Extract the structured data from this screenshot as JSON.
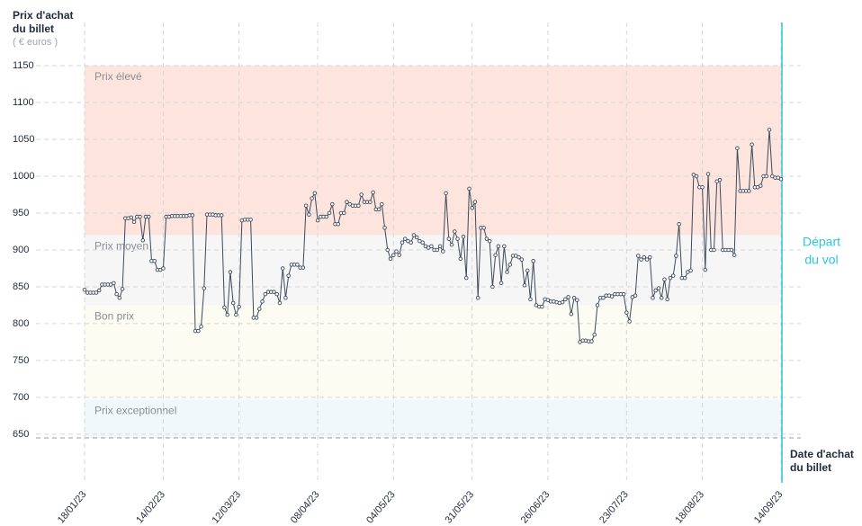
{
  "chart_data": {
    "type": "line",
    "y_label": [
      "Prix d'achat",
      "du billet"
    ],
    "y_unit": "( € euros )",
    "x_label": [
      "Date d'achat",
      "du billet"
    ],
    "annotation": {
      "text": [
        "Départ",
        "du vol"
      ],
      "color": "#2ec4e0"
    },
    "ylim": [
      645,
      1150
    ],
    "yticks": [
      650,
      700,
      750,
      800,
      850,
      900,
      950,
      1000,
      1050,
      1100,
      1150
    ],
    "grid": true,
    "color": "#3d4a5c",
    "bands": [
      {
        "label": "Prix élevé",
        "from": 920,
        "to": 1150,
        "color": "#fde4dd"
      },
      {
        "label": "Prix moyen",
        "from": 825,
        "to": 920,
        "color": "#f6f6f7"
      },
      {
        "label": "Bon prix",
        "from": 697,
        "to": 825,
        "color": "#fcfcf2"
      },
      {
        "label": "Prix exceptionnel",
        "from": 645,
        "to": 697,
        "color": "#f1f8fc"
      }
    ],
    "categories": [
      "18/01/23",
      null,
      null,
      null,
      null,
      null,
      null,
      null,
      null,
      null,
      null,
      null,
      null,
      null,
      null,
      null,
      null,
      null,
      null,
      null,
      null,
      null,
      null,
      null,
      null,
      null,
      null,
      "14/02/23",
      null,
      null,
      null,
      null,
      null,
      null,
      null,
      null,
      null,
      null,
      null,
      null,
      null,
      null,
      null,
      null,
      null,
      null,
      null,
      null,
      null,
      null,
      null,
      null,
      null,
      "12/03/23",
      null,
      null,
      null,
      null,
      null,
      null,
      null,
      null,
      null,
      null,
      null,
      null,
      null,
      null,
      null,
      null,
      null,
      null,
      null,
      null,
      null,
      null,
      null,
      null,
      null,
      null,
      "08/04/23",
      null,
      null,
      null,
      null,
      null,
      null,
      null,
      null,
      null,
      null,
      null,
      null,
      null,
      null,
      null,
      null,
      null,
      null,
      null,
      null,
      null,
      null,
      null,
      null,
      null,
      "04/05/23",
      null,
      null,
      null,
      null,
      null,
      null,
      null,
      null,
      null,
      null,
      null,
      null,
      null,
      null,
      null,
      null,
      null,
      null,
      null,
      null,
      null,
      null,
      null,
      null,
      null,
      null,
      "31/05/23",
      null,
      null,
      null,
      null,
      null,
      null,
      null,
      null,
      null,
      null,
      null,
      null,
      null,
      null,
      null,
      null,
      null,
      null,
      null,
      null,
      null,
      null,
      null,
      null,
      null,
      "26/06/23",
      null,
      null,
      null,
      null,
      null,
      null,
      null,
      null,
      null,
      null,
      null,
      null,
      null,
      null,
      null,
      null,
      null,
      null,
      null,
      null,
      null,
      null,
      null,
      null,
      null,
      null,
      "23/07/23",
      null,
      null,
      null,
      null,
      null,
      null,
      null,
      null,
      null,
      null,
      null,
      null,
      null,
      null,
      null,
      null,
      null,
      null,
      null,
      null,
      null,
      null,
      null,
      null,
      null,
      "18/08/23",
      null,
      null,
      null,
      null,
      null,
      null,
      null,
      null,
      null,
      null,
      null,
      null,
      null,
      null,
      null,
      null,
      null,
      null,
      null,
      null,
      null,
      null,
      null,
      null,
      null,
      null,
      "14/09/23"
    ],
    "values": [
      846,
      842,
      842,
      842,
      842,
      845,
      853,
      853,
      853,
      853,
      855,
      840,
      835,
      847,
      943,
      943,
      944,
      938,
      945,
      945,
      913,
      945,
      945,
      885,
      885,
      873,
      873,
      875,
      945,
      945,
      946,
      946,
      946,
      946,
      946,
      946,
      947,
      947,
      790,
      790,
      796,
      848,
      948,
      948,
      948,
      947,
      947,
      947,
      822,
      812,
      870,
      828,
      812,
      823,
      940,
      941,
      941,
      941,
      808,
      808,
      820,
      830,
      840,
      843,
      843,
      843,
      840,
      828,
      875,
      835,
      865,
      880,
      880,
      880,
      876,
      876,
      960,
      948,
      970,
      977,
      940,
      945,
      945,
      945,
      950,
      962,
      935,
      935,
      950,
      950,
      965,
      962,
      960,
      960,
      960,
      975,
      965,
      965,
      965,
      978,
      955,
      955,
      962,
      930,
      900,
      888,
      893,
      898,
      893,
      910,
      915,
      912,
      910,
      920,
      917,
      912,
      910,
      905,
      903,
      905,
      900,
      900,
      905,
      898,
      977,
      915,
      907,
      925,
      915,
      888,
      918,
      862,
      983,
      957,
      965,
      835,
      930,
      930,
      915,
      912,
      850,
      893,
      905,
      855,
      905,
      870,
      880,
      892,
      892,
      890,
      887,
      852,
      872,
      833,
      885,
      825,
      823,
      823,
      833,
      832,
      830,
      830,
      829,
      828,
      829,
      833,
      836,
      813,
      835,
      832,
      775,
      777,
      777,
      776,
      776,
      785,
      825,
      835,
      835,
      838,
      838,
      837,
      840,
      840,
      840,
      840,
      815,
      803,
      836,
      838,
      892,
      887,
      890,
      887,
      890,
      835,
      845,
      848,
      835,
      860,
      833,
      862,
      865,
      892,
      935,
      862,
      862,
      870,
      872,
      1002,
      1000,
      985,
      985,
      873,
      1003,
      900,
      900,
      993,
      995,
      900,
      900,
      900,
      900,
      893,
      1038,
      980,
      980,
      980,
      980,
      1043,
      985,
      985,
      987,
      1000,
      1000,
      1063,
      1000,
      998,
      998,
      996
    ]
  }
}
